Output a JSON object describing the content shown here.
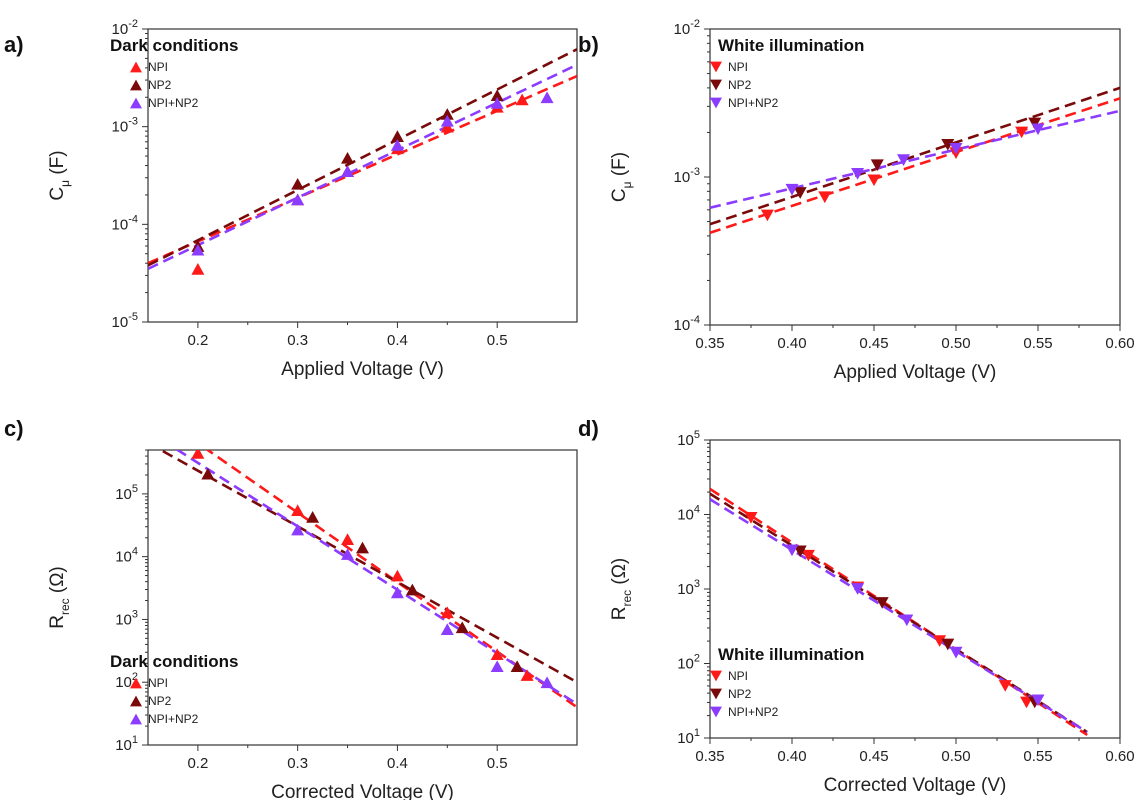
{
  "colors": {
    "NPI": "#ff1a1a",
    "NP2": "#7a0a0a",
    "NPI+NP2": "#8c3cff"
  },
  "chart_data": [
    {
      "id": "a",
      "panel_label": "a)",
      "type": "scatter",
      "condition_title": "Dark conditions",
      "marker": "triangle-up",
      "xlabel": "Applied Voltage (V)",
      "ylabel": "C",
      "ylabel_sub": "μ",
      "ylabel_unit": " (F)",
      "xlim": [
        0.15,
        0.58
      ],
      "ylim": [
        1e-05,
        0.01
      ],
      "yscale": "log",
      "xticks": [
        0.2,
        0.3,
        0.4,
        0.5
      ],
      "xtick_labels": [
        "0.2",
        "0.3",
        "0.4",
        "0.5"
      ],
      "yticks": [
        1e-05,
        0.0001,
        0.001,
        0.01
      ],
      "ytick_base": [
        "10",
        "10",
        "10",
        "10"
      ],
      "ytick_exp": [
        "-5",
        "-4",
        "-3",
        "-2"
      ],
      "legend_position": "top-left",
      "series": [
        {
          "name": "NPI",
          "color": "#ff1a1a",
          "x": [
            0.2,
            0.3,
            0.35,
            0.4,
            0.45,
            0.5,
            0.525
          ],
          "y": [
            3.5e-05,
            0.00018,
            0.00035,
            0.0006,
            0.001,
            0.0016,
            0.0019
          ],
          "fit": [
            [
              0.15,
              4e-05
            ],
            [
              0.58,
              0.0033
            ]
          ]
        },
        {
          "name": "NP2",
          "color": "#7a0a0a",
          "x": [
            0.2,
            0.3,
            0.35,
            0.4,
            0.45,
            0.5
          ],
          "y": [
            6e-05,
            0.00026,
            0.00048,
            0.0008,
            0.00135,
            0.0021
          ],
          "fit": [
            [
              0.15,
              3.8e-05
            ],
            [
              0.58,
              0.0062
            ]
          ]
        },
        {
          "name": "NPI+NP2",
          "color": "#8c3cff",
          "x": [
            0.2,
            0.3,
            0.35,
            0.4,
            0.45,
            0.5,
            0.55
          ],
          "y": [
            5.5e-05,
            0.00018,
            0.00035,
            0.00065,
            0.00115,
            0.00175,
            0.002
          ],
          "fit": [
            [
              0.15,
              3.5e-05
            ],
            [
              0.58,
              0.0043
            ]
          ]
        }
      ]
    },
    {
      "id": "b",
      "panel_label": "b)",
      "type": "scatter",
      "condition_title": "White illumination",
      "marker": "triangle-down",
      "xlabel": "Applied Voltage (V)",
      "ylabel": "C",
      "ylabel_sub": "μ",
      "ylabel_unit": " (F)",
      "xlim": [
        0.35,
        0.6
      ],
      "ylim": [
        0.0001,
        0.01
      ],
      "yscale": "log",
      "xticks": [
        0.35,
        0.4,
        0.45,
        0.5,
        0.55,
        0.6
      ],
      "xtick_labels": [
        "0.35",
        "0.40",
        "0.45",
        "0.50",
        "0.55",
        "0.60"
      ],
      "yticks": [
        0.0001,
        0.001,
        0.01
      ],
      "ytick_base": [
        "10",
        "10",
        "10"
      ],
      "ytick_exp": [
        "-4",
        "-3",
        "-2"
      ],
      "legend_position": "top-left",
      "series": [
        {
          "name": "NPI",
          "color": "#ff1a1a",
          "x": [
            0.385,
            0.42,
            0.45,
            0.5,
            0.54
          ],
          "y": [
            0.00055,
            0.00073,
            0.00095,
            0.00145,
            0.002
          ],
          "fit": [
            [
              0.35,
              0.00042
            ],
            [
              0.6,
              0.0034
            ]
          ]
        },
        {
          "name": "NP2",
          "color": "#7a0a0a",
          "x": [
            0.405,
            0.452,
            0.495,
            0.548
          ],
          "y": [
            0.00078,
            0.0012,
            0.00165,
            0.0023
          ],
          "fit": [
            [
              0.35,
              0.00048
            ],
            [
              0.6,
              0.004
            ]
          ]
        },
        {
          "name": "NPI+NP2",
          "color": "#8c3cff",
          "x": [
            0.4,
            0.44,
            0.468,
            0.5,
            0.55
          ],
          "y": [
            0.00082,
            0.00105,
            0.0013,
            0.00155,
            0.0021
          ],
          "fit": [
            [
              0.35,
              0.00062
            ],
            [
              0.6,
              0.0028
            ]
          ]
        }
      ]
    },
    {
      "id": "c",
      "panel_label": "c)",
      "type": "scatter",
      "condition_title": "Dark conditions",
      "marker": "triangle-up",
      "xlabel": "Corrected Voltage (V)",
      "ylabel": "R",
      "ylabel_sub": "rec",
      "ylabel_unit": " (Ω)",
      "xlim": [
        0.15,
        0.58
      ],
      "ylim": [
        10,
        500000
      ],
      "yscale": "log",
      "xticks": [
        0.2,
        0.3,
        0.4,
        0.5
      ],
      "xtick_labels": [
        "0.2",
        "0.3",
        "0.4",
        "0.5"
      ],
      "yticks": [
        10,
        100,
        1000,
        10000,
        100000,
        1000000
      ],
      "ytick_base": [
        "10",
        "10",
        "10",
        "10",
        "10",
        "10"
      ],
      "ytick_exp": [
        "1",
        "2",
        "3",
        "4",
        "5",
        "6"
      ],
      "legend_position": "bottom-left",
      "series": [
        {
          "name": "NPI",
          "color": "#ff1a1a",
          "x": [
            0.2,
            0.3,
            0.35,
            0.4,
            0.45,
            0.5,
            0.53
          ],
          "y": [
            450000,
            55000,
            19000,
            5000,
            1300,
            280,
            130
          ],
          "fit": [
            [
              0.15,
              2300000.0
            ],
            [
              0.58,
              40
            ]
          ]
        },
        {
          "name": "NP2",
          "color": "#7a0a0a",
          "x": [
            0.21,
            0.315,
            0.365,
            0.415,
            0.465,
            0.52
          ],
          "y": [
            210000,
            43000,
            14000,
            3000,
            750,
            180
          ],
          "fit": [
            [
              0.15,
              650000.0
            ],
            [
              0.58,
              100
            ]
          ]
        },
        {
          "name": "NPI+NP2",
          "color": "#8c3cff",
          "x": [
            0.3,
            0.35,
            0.4,
            0.45,
            0.5,
            0.55
          ],
          "y": [
            27000,
            11000,
            2700,
            700,
            180,
            100
          ],
          "fit": [
            [
              0.15,
              1000000.0
            ],
            [
              0.58,
              45
            ]
          ]
        }
      ]
    },
    {
      "id": "d",
      "panel_label": "d)",
      "type": "scatter",
      "condition_title": "White illumination",
      "marker": "triangle-down",
      "xlabel": "Corrected Voltage (V)",
      "ylabel": "R",
      "ylabel_sub": "rec",
      "ylabel_unit": " (Ω)",
      "xlim": [
        0.35,
        0.6
      ],
      "ylim": [
        10,
        100000
      ],
      "yscale": "log",
      "xticks": [
        0.35,
        0.4,
        0.45,
        0.5,
        0.55,
        0.6
      ],
      "xtick_labels": [
        "0.35",
        "0.40",
        "0.45",
        "0.50",
        "0.55",
        "0.60"
      ],
      "yticks": [
        10,
        100,
        1000,
        10000,
        100000
      ],
      "ytick_base": [
        "10",
        "10",
        "10",
        "10",
        "10"
      ],
      "ytick_exp": [
        "1",
        "2",
        "3",
        "4",
        "5"
      ],
      "legend_position": "bottom-left",
      "series": [
        {
          "name": "NPI",
          "color": "#ff1a1a",
          "x": [
            0.375,
            0.41,
            0.44,
            0.49,
            0.53,
            0.543
          ],
          "y": [
            9000,
            2800,
            1050,
            200,
            50,
            30
          ],
          "fit": [
            [
              0.35,
              22000
            ],
            [
              0.58,
              11
            ]
          ]
        },
        {
          "name": "NP2",
          "color": "#7a0a0a",
          "x": [
            0.405,
            0.455,
            0.495,
            0.548
          ],
          "y": [
            3200,
            650,
            180,
            30
          ],
          "fit": [
            [
              0.35,
              19000
            ],
            [
              0.58,
              12
            ]
          ]
        },
        {
          "name": "NPI+NP2",
          "color": "#8c3cff",
          "x": [
            0.4,
            0.44,
            0.47,
            0.5,
            0.55
          ],
          "y": [
            3300,
            1000,
            380,
            140,
            32
          ],
          "fit": [
            [
              0.35,
              16000
            ],
            [
              0.58,
              12
            ]
          ]
        }
      ]
    }
  ]
}
